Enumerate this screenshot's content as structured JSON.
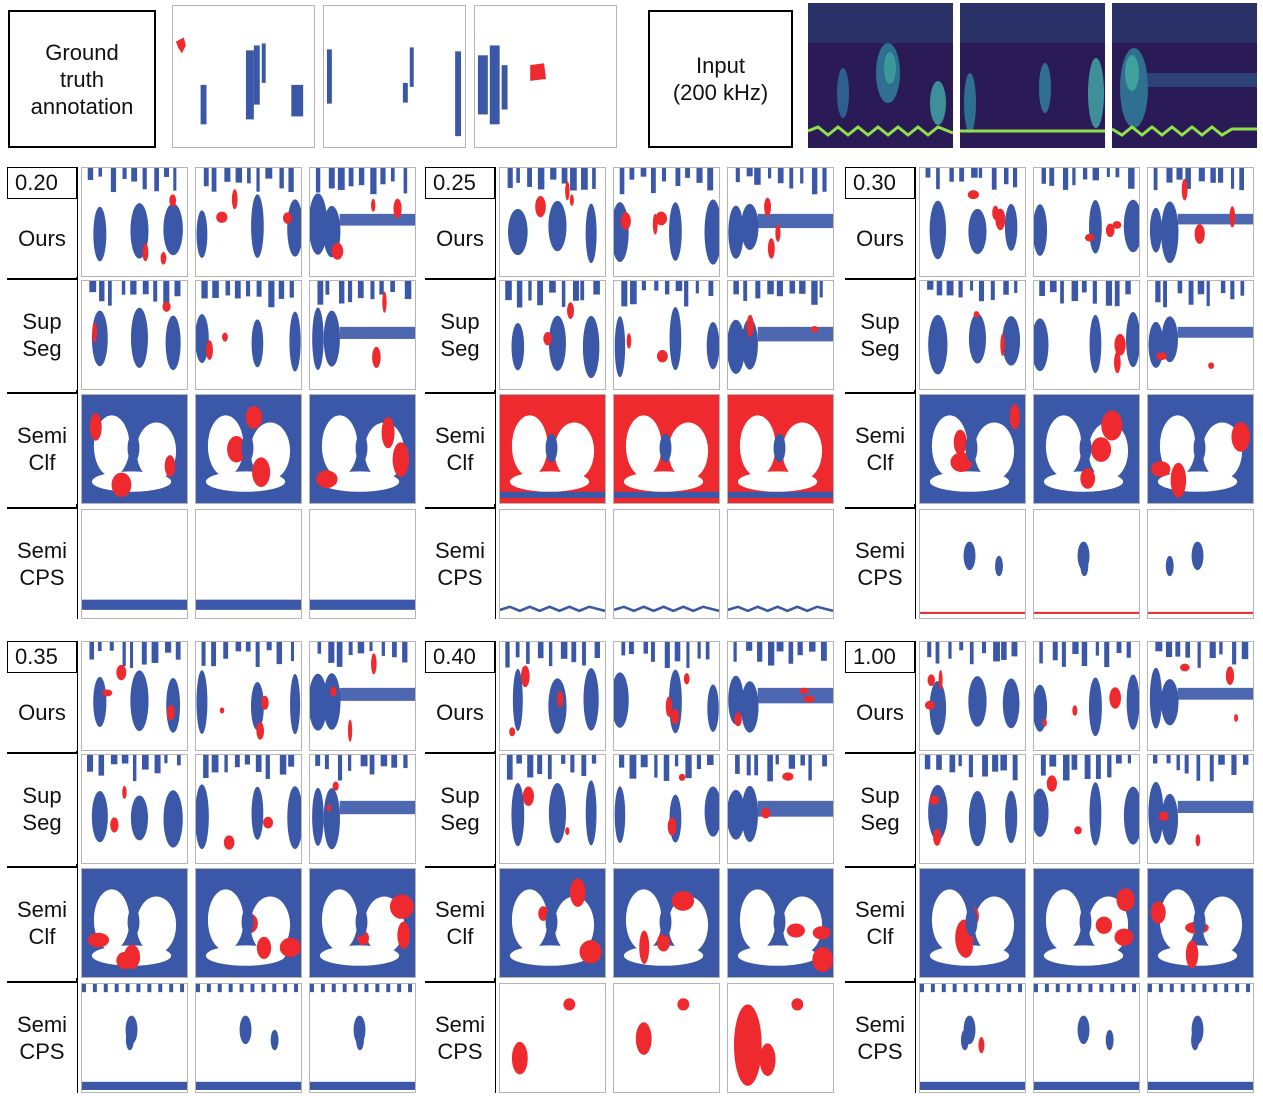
{
  "header": {
    "ground_truth_label": "Ground truth annotation",
    "input_label_line1": "Input",
    "input_label_line2": "(200 kHz)"
  },
  "row_labels": {
    "ours": "Ours",
    "supseg_line1": "Sup",
    "supseg_line2": "Seg",
    "semiclf_line1": "Semi",
    "semiclf_line2": "Clf",
    "semicps_line1": "Semi",
    "semicps_line2": "CPS"
  },
  "thresholds": [
    "0.20",
    "0.25",
    "0.30",
    "0.35",
    "0.40",
    "1.00"
  ],
  "legend_colors": {
    "class_a": "#3b57a8",
    "class_b": "#ee2a2e",
    "background": "#ffffff",
    "spectrogram_dark": "#2a1b57",
    "spectrogram_mid": "#2f5f8f",
    "spectrogram_bright": "#45b6a0",
    "spectrogram_trace": "#8fe04a"
  }
}
